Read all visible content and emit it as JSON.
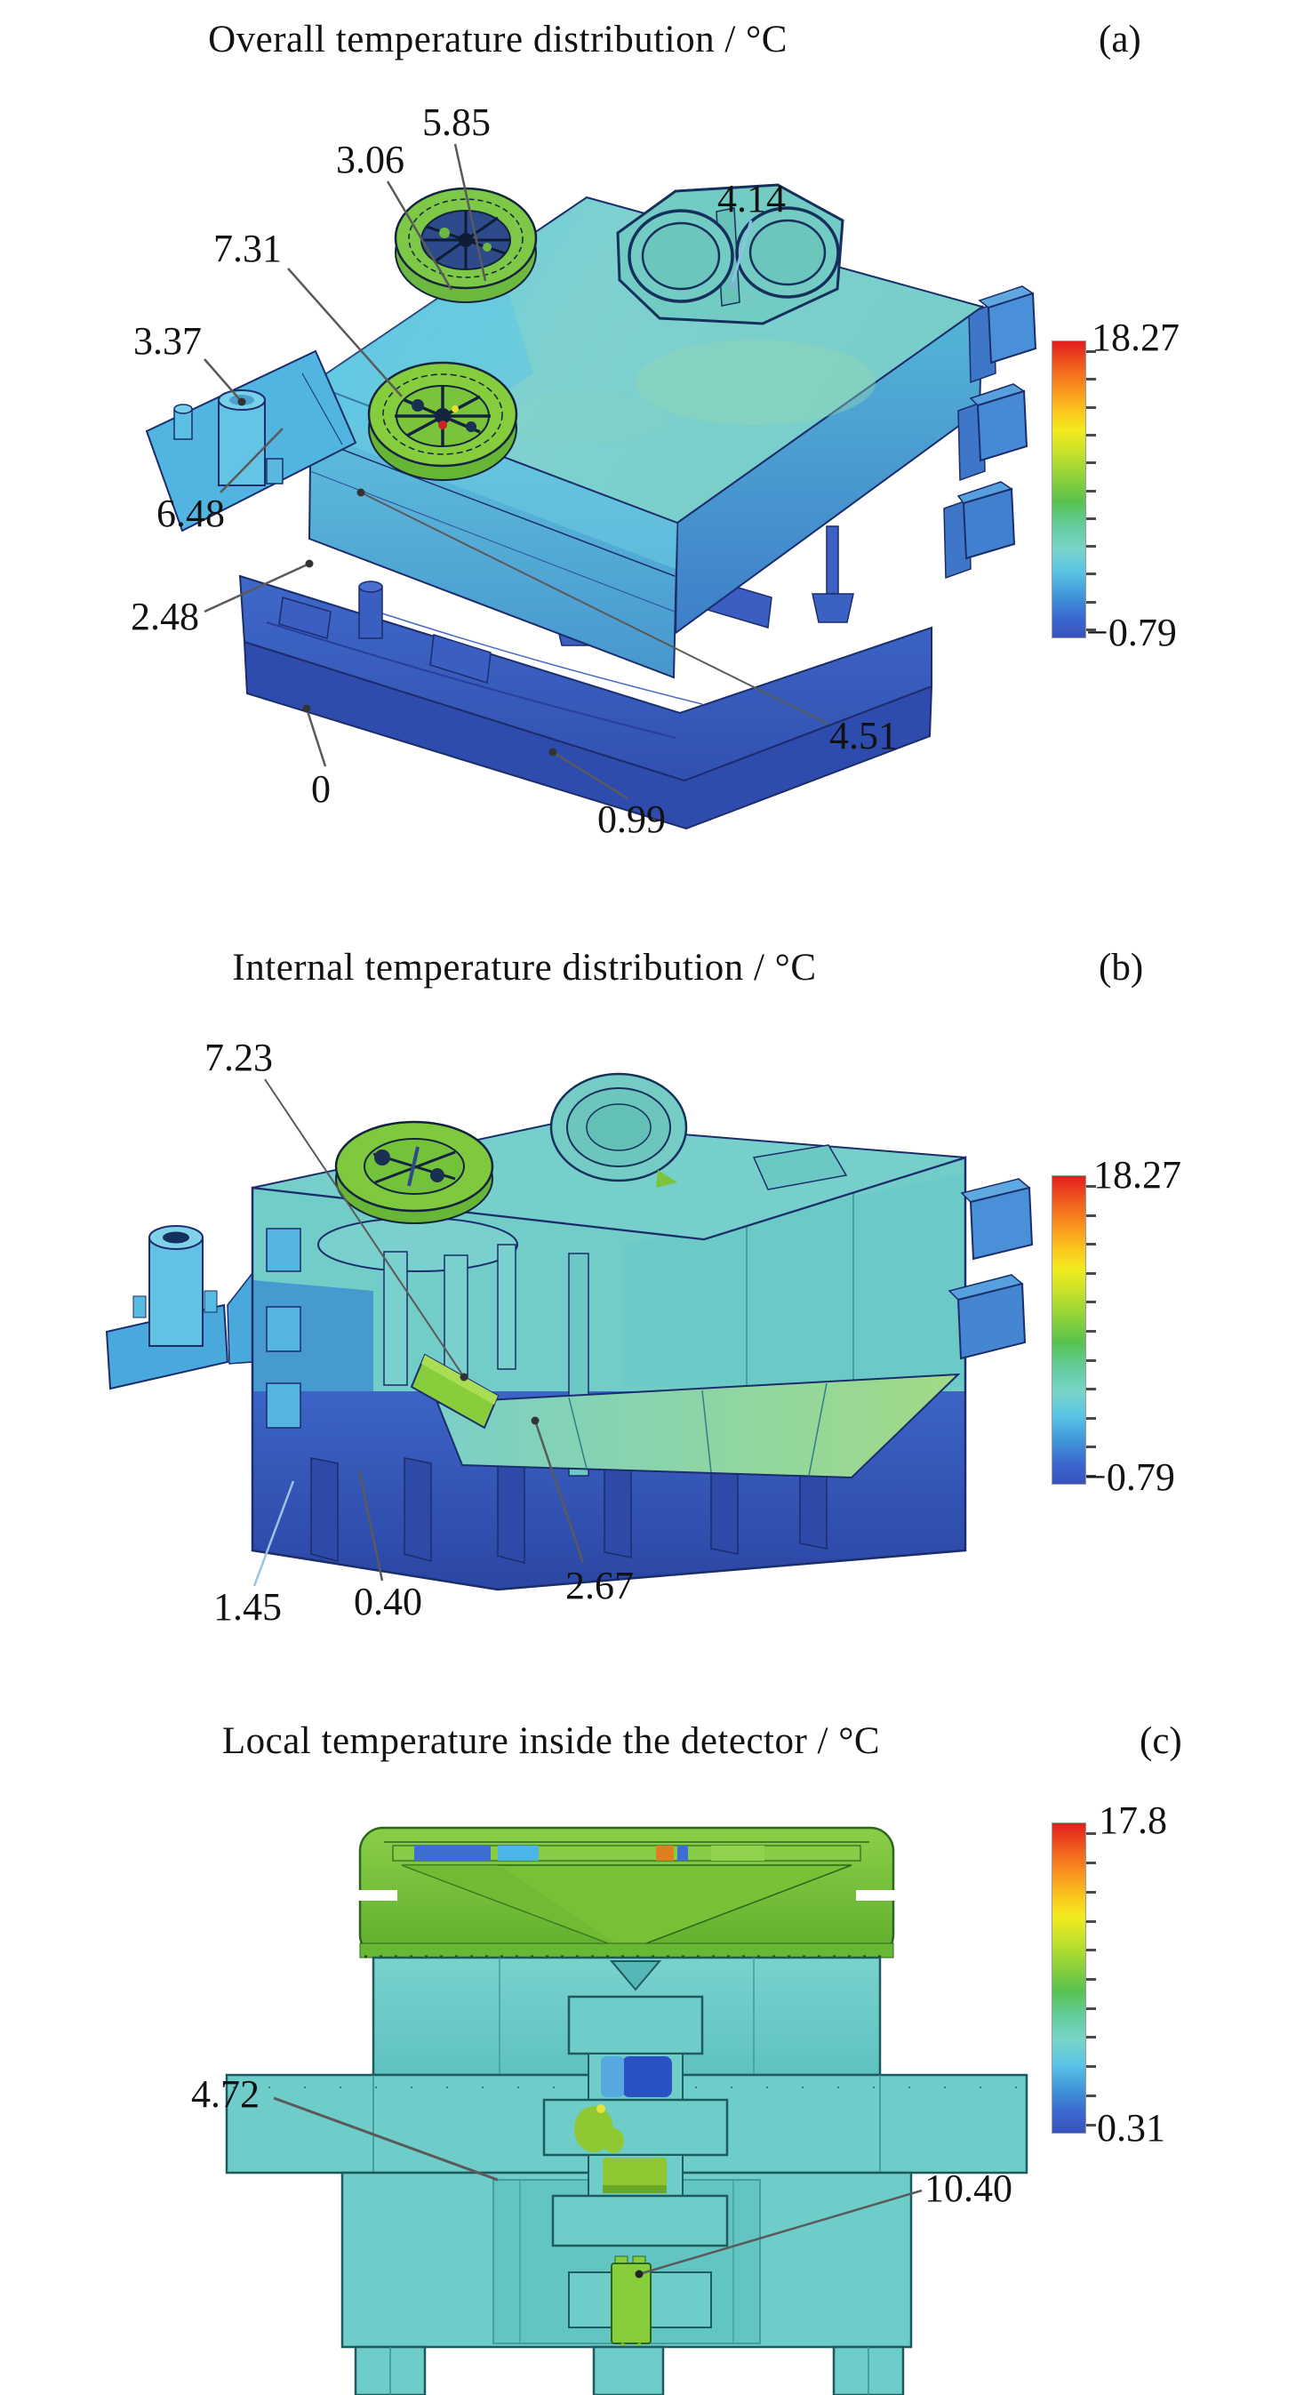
{
  "panels": [
    {
      "id": "a",
      "title": "Overall temperature distribution / °C",
      "tag": "(a)",
      "colorbar": {
        "max": "18.27",
        "min": "−0.79"
      },
      "annotations": [
        {
          "text": "5.85"
        },
        {
          "text": "3.06"
        },
        {
          "text": "7.31"
        },
        {
          "text": "3.37"
        },
        {
          "text": "4.14"
        },
        {
          "text": "6.48"
        },
        {
          "text": "2.48"
        },
        {
          "text": "0"
        },
        {
          "text": "0.99"
        },
        {
          "text": "4.51"
        }
      ]
    },
    {
      "id": "b",
      "title": "Internal temperature distribution / °C",
      "tag": "(b)",
      "colorbar": {
        "max": "18.27",
        "min": "−0.79"
      },
      "annotations": [
        {
          "text": "7.23"
        },
        {
          "text": "1.45"
        },
        {
          "text": "0.40"
        },
        {
          "text": "2.67"
        }
      ]
    },
    {
      "id": "c",
      "title": "Local temperature inside the detector / °C",
      "tag": "(c)",
      "colorbar": {
        "max": "17.8",
        "min": "0.31"
      },
      "annotations": [
        {
          "text": "4.72"
        },
        {
          "text": "10.40"
        }
      ]
    }
  ],
  "colors": {
    "colorbar_hot": "#e31d1d",
    "colorbar_cold": "#3852bc",
    "housing_teal": "#74cfcb",
    "component_green": "#7cc447",
    "base_blue": "#3452b4"
  }
}
